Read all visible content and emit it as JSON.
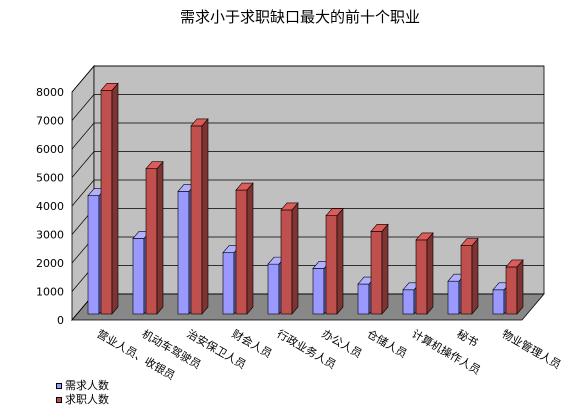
{
  "chart_data": {
    "type": "bar",
    "title": "需求小于求职缺口最大的前十个职业",
    "categories": [
      "营业人员、收银员",
      "机动车驾驶员",
      "治安保卫人员",
      "财会人员",
      "行政业务人员",
      "办公人员",
      "仓储人员",
      "计算机操作人员",
      "秘书",
      "物业管理人员"
    ],
    "series": [
      {
        "name": "需求人数",
        "color": "#9999ff",
        "values": [
          4150,
          2650,
          4300,
          2150,
          1750,
          1600,
          1050,
          850,
          1150,
          850
        ]
      },
      {
        "name": "求职人数",
        "color": "#c0504d",
        "values": [
          7850,
          5100,
          6600,
          4350,
          3650,
          3450,
          2900,
          2600,
          2400,
          1650
        ]
      }
    ],
    "ylim": [
      0,
      8000
    ],
    "yticks": [
      0,
      1000,
      2000,
      3000,
      4000,
      5000,
      6000,
      7000,
      8000
    ],
    "grid": true,
    "legend": "bottom-left"
  }
}
